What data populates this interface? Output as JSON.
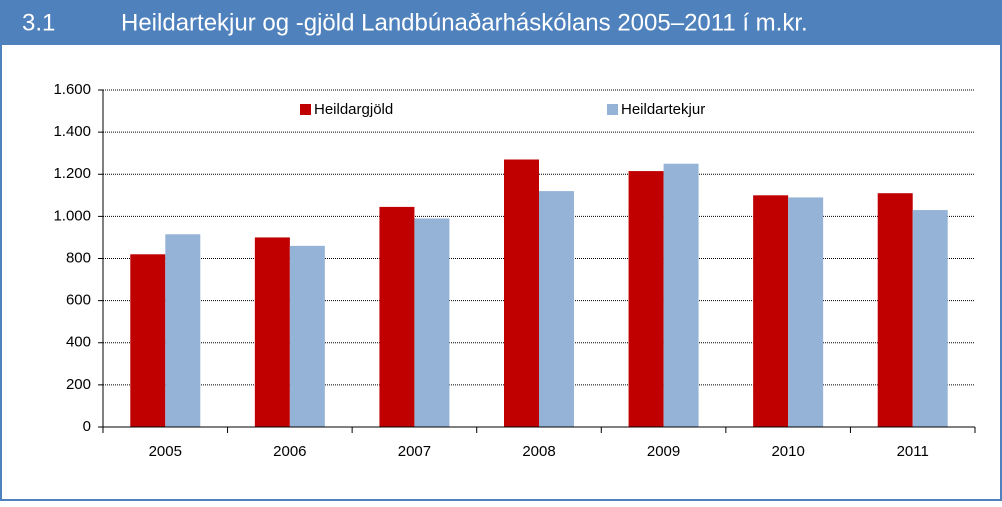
{
  "header": {
    "number": "3.1",
    "title": "Heildartekjur og -gjöld Landbúnaðarháskólans 2005–2011 í m.kr."
  },
  "chart_data": {
    "type": "bar",
    "categories": [
      "2005",
      "2006",
      "2007",
      "2008",
      "2009",
      "2010",
      "2011"
    ],
    "series": [
      {
        "name": "Heildargjöld",
        "color": "#c00000",
        "values": [
          820,
          900,
          1045,
          1270,
          1215,
          1100,
          1110
        ]
      },
      {
        "name": "Heildartekjur",
        "color": "#95b3d7",
        "values": [
          915,
          860,
          990,
          1120,
          1250,
          1090,
          1030
        ]
      }
    ],
    "ylim": [
      0,
      1600
    ],
    "yticks": [
      0,
      200,
      400,
      600,
      800,
      {
        "value": 1000,
        "label": "1.000"
      },
      {
        "value": 1200,
        "label": "1.200"
      },
      {
        "value": 1400,
        "label": "1.400"
      },
      {
        "value": 1600,
        "label": "1.600"
      }
    ],
    "grid": true,
    "legend": "top"
  }
}
